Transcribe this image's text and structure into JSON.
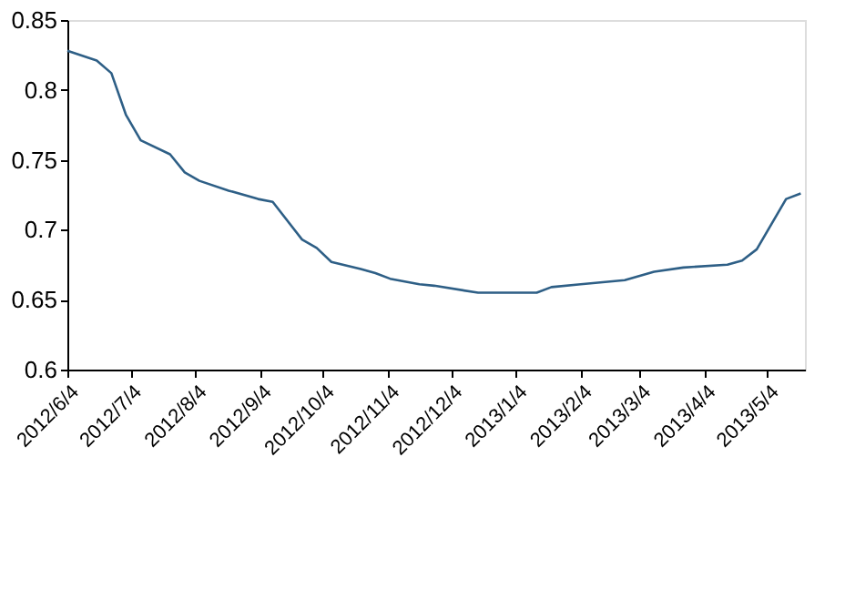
{
  "chart_data": {
    "type": "line",
    "x": [
      "2012-06-04",
      "2012-06-18",
      "2012-06-25",
      "2012-07-02",
      "2012-07-09",
      "2012-07-23",
      "2012-07-30",
      "2012-08-06",
      "2012-08-20",
      "2012-09-03",
      "2012-09-10",
      "2012-09-24",
      "2012-10-01",
      "2012-10-08",
      "2012-10-22",
      "2012-10-29",
      "2012-11-05",
      "2012-11-19",
      "2012-11-26",
      "2012-12-17",
      "2013-01-14",
      "2013-01-21",
      "2013-02-04",
      "2013-02-25",
      "2013-03-11",
      "2013-03-25",
      "2013-04-15",
      "2013-04-22",
      "2013-04-29",
      "2013-05-13",
      "2013-05-20"
    ],
    "series": [
      {
        "color": "#2e5f86",
        "values": [
          0.828,
          0.821,
          0.812,
          0.782,
          0.764,
          0.754,
          0.741,
          0.735,
          0.728,
          0.722,
          0.72,
          0.693,
          0.687,
          0.677,
          0.672,
          0.669,
          0.665,
          0.661,
          0.66,
          0.655,
          0.655,
          0.659,
          0.661,
          0.664,
          0.67,
          0.673,
          0.675,
          0.678,
          0.686,
          0.722,
          0.726
        ]
      }
    ],
    "xlim": [
      "2012-06-04",
      "2013-05-22"
    ],
    "xticks": [
      {
        "value": "2012-06-04",
        "label": "2012/6/4"
      },
      {
        "value": "2012-07-04",
        "label": "2012/7/4"
      },
      {
        "value": "2012-08-04",
        "label": "2012/8/4"
      },
      {
        "value": "2012-09-04",
        "label": "2012/9/4"
      },
      {
        "value": "2012-10-04",
        "label": "2012/10/4"
      },
      {
        "value": "2012-11-04",
        "label": "2012/11/4"
      },
      {
        "value": "2012-12-04",
        "label": "2012/12/4"
      },
      {
        "value": "2013-01-04",
        "label": "2013/1/4"
      },
      {
        "value": "2013-02-04",
        "label": "2013/2/4"
      },
      {
        "value": "2013-03-04",
        "label": "2013/3/4"
      },
      {
        "value": "2013-04-04",
        "label": "2013/4/4"
      },
      {
        "value": "2013-05-04",
        "label": "2013/5/4"
      }
    ],
    "ylim": [
      0.6,
      0.85
    ],
    "yticks": [
      0.6,
      0.65,
      0.7,
      0.75,
      0.8,
      0.85
    ],
    "grid": false,
    "legend": false,
    "marker": "none",
    "line_style": "solid"
  }
}
